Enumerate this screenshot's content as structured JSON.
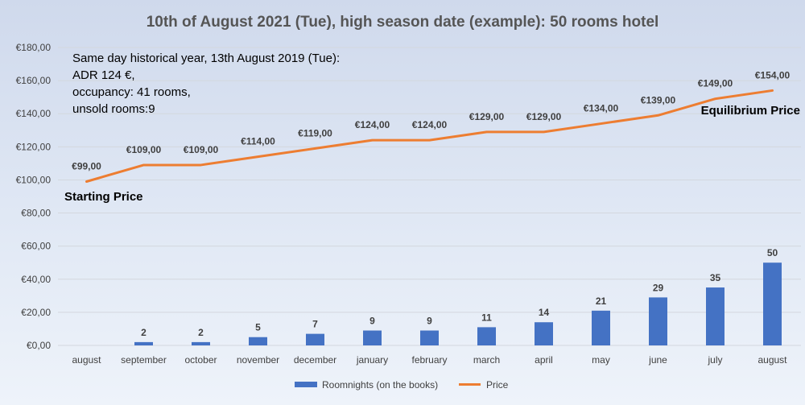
{
  "chart_data": {
    "type": "bar",
    "title": "10th of August 2021 (Tue), high season date (example): 50 rooms hotel",
    "categories": [
      "august",
      "september",
      "october",
      "november",
      "december",
      "january",
      "february",
      "march",
      "april",
      "may",
      "june",
      "july",
      "august"
    ],
    "series": [
      {
        "name": "Roomnights (on the books)",
        "type": "bar",
        "color": "#4472c4",
        "values": [
          0,
          2,
          2,
          5,
          7,
          9,
          9,
          11,
          14,
          21,
          29,
          35,
          50
        ],
        "labels": [
          "",
          "2",
          "2",
          "5",
          "7",
          "9",
          "9",
          "11",
          "14",
          "21",
          "29",
          "35",
          "50"
        ]
      },
      {
        "name": "Price",
        "type": "line",
        "color": "#ed7d31",
        "values": [
          99,
          109,
          109,
          114,
          119,
          124,
          124,
          129,
          129,
          134,
          139,
          149,
          154
        ],
        "labels": [
          "€99,00",
          "€109,00",
          "€109,00",
          "€114,00",
          "€119,00",
          "€124,00",
          "€124,00",
          "€129,00",
          "€129,00",
          "€134,00",
          "€139,00",
          "€149,00",
          "€154,00"
        ]
      }
    ],
    "ylim": [
      0,
      180
    ],
    "yticks": [
      "€0,00",
      "€20,00",
      "€40,00",
      "€60,00",
      "€80,00",
      "€100,00",
      "€120,00",
      "€140,00",
      "€160,00",
      "€180,00"
    ],
    "grid": true,
    "legend_position": "bottom",
    "annotations": {
      "note_lines": [
        "Same day historical year, 13th August 2019 (Tue):",
        "ADR 124 €,",
        "occupancy: 41 rooms,",
        "unsold rooms:9"
      ],
      "starting_price": "Starting Price",
      "equilibrium_price": "Equilibrium Price"
    }
  }
}
